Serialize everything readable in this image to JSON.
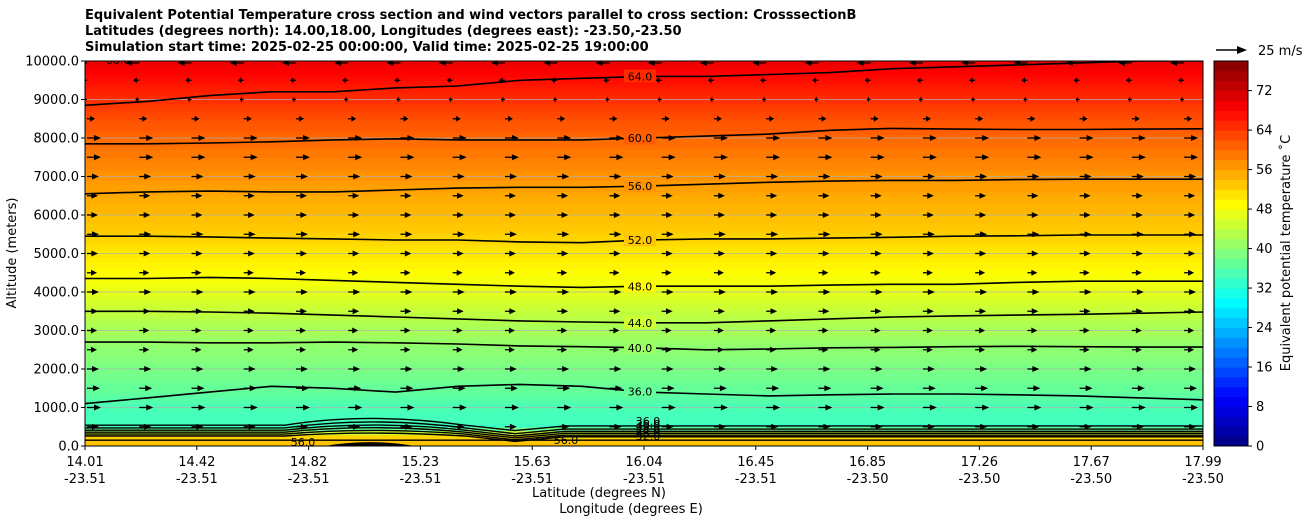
{
  "chart_data": {
    "type": "heatmap",
    "title_lines": [
      "Equivalent Potential Temperature cross section and wind vectors parallel to cross section: CrosssectionB",
      "Latitudes (degrees north): 14.00,18.00, Longitudes (degrees east): -23.50,-23.50",
      "Simulation start time: 2025-02-25 00:00:00, Valid time: 2025-02-25 19:00:00"
    ],
    "ylabel": "Altitude (meters)",
    "xlabel_lat": "Latitude (degrees N)",
    "xlabel_lon": "Longitude (degrees E)",
    "ylim": [
      0,
      10000
    ],
    "y_ticks": [
      0,
      1000,
      2000,
      3000,
      4000,
      5000,
      6000,
      7000,
      8000,
      9000,
      10000
    ],
    "y_tick_labels": [
      "0.0",
      "1000.0",
      "2000.0",
      "3000.0",
      "4000.0",
      "5000.0",
      "6000.0",
      "7000.0",
      "8000.0",
      "9000.0",
      "10000.0"
    ],
    "x_ticks": [
      {
        "lat": "14.01",
        "lon": "-23.51"
      },
      {
        "lat": "14.42",
        "lon": "-23.51"
      },
      {
        "lat": "14.82",
        "lon": "-23.51"
      },
      {
        "lat": "15.23",
        "lon": "-23.51"
      },
      {
        "lat": "15.63",
        "lon": "-23.51"
      },
      {
        "lat": "16.04",
        "lon": "-23.51"
      },
      {
        "lat": "16.45",
        "lon": "-23.51"
      },
      {
        "lat": "16.85",
        "lon": "-23.50"
      },
      {
        "lat": "17.26",
        "lon": "-23.50"
      },
      {
        "lat": "17.67",
        "lon": "-23.50"
      },
      {
        "lat": "17.99",
        "lon": "-23.50"
      }
    ],
    "colorbar": {
      "label": "Equivalent potential temperature ˚C",
      "range": [
        0,
        78
      ],
      "ticks": [
        0,
        8,
        16,
        24,
        32,
        40,
        48,
        56,
        64,
        72
      ],
      "tick_labels": [
        "0",
        "8",
        "16",
        "24",
        "32",
        "40",
        "48",
        "56",
        "64",
        "72"
      ]
    },
    "quiver_key": {
      "label": "25 m/s",
      "speed": 25
    },
    "theta_e_profile": [
      {
        "alt": 0,
        "value": 54
      },
      {
        "alt": 250,
        "value": 52
      },
      {
        "alt": 500,
        "value": 34
      },
      {
        "alt": 1000,
        "value": 35
      },
      {
        "alt": 1500,
        "value": 37
      },
      {
        "alt": 2500,
        "value": 40
      },
      {
        "alt": 3500,
        "value": 44
      },
      {
        "alt": 4300,
        "value": 48
      },
      {
        "alt": 5400,
        "value": 52
      },
      {
        "alt": 6700,
        "value": 56
      },
      {
        "alt": 7900,
        "value": 60
      },
      {
        "alt": 8700,
        "value": 63
      },
      {
        "alt": 9300,
        "value": 66
      },
      {
        "alt": 10000,
        "value": 70
      }
    ],
    "contours": [
      {
        "label": "36.0",
        "alts": [
          1100,
          1250,
          1400,
          1550,
          1500,
          1400,
          1550,
          1600,
          1550,
          1400,
          1350,
          1300,
          1330,
          1350,
          1350,
          1330,
          1300,
          1250,
          1200
        ]
      },
      {
        "label": "40.0",
        "alts": [
          2700,
          2700,
          2680,
          2680,
          2700,
          2680,
          2650,
          2600,
          2580,
          2550,
          2500,
          2520,
          2550,
          2560,
          2580,
          2590,
          2580,
          2570,
          2570
        ]
      },
      {
        "label": "44.0",
        "alts": [
          3500,
          3500,
          3480,
          3450,
          3400,
          3350,
          3300,
          3250,
          3220,
          3200,
          3200,
          3250,
          3300,
          3350,
          3380,
          3400,
          3420,
          3450,
          3480
        ]
      },
      {
        "label": "48.0",
        "alts": [
          4350,
          4350,
          4380,
          4350,
          4300,
          4250,
          4200,
          4150,
          4120,
          4150,
          4150,
          4150,
          4180,
          4200,
          4200,
          4250,
          4280,
          4280,
          4280
        ]
      },
      {
        "label": "52.0",
        "alts": [
          5450,
          5450,
          5430,
          5400,
          5380,
          5350,
          5350,
          5300,
          5280,
          5350,
          5380,
          5380,
          5400,
          5420,
          5450,
          5460,
          5480,
          5480,
          5480
        ]
      },
      {
        "label": "56.0",
        "alts": [
          6550,
          6600,
          6620,
          6600,
          6600,
          6650,
          6700,
          6720,
          6720,
          6750,
          6800,
          6850,
          6880,
          6900,
          6900,
          6920,
          6930,
          6930,
          6930
        ]
      },
      {
        "label": "60.0",
        "alts": [
          7850,
          7850,
          7870,
          7900,
          7950,
          7980,
          7950,
          7950,
          7950,
          8000,
          8050,
          8100,
          8200,
          8250,
          8230,
          8220,
          8220,
          8230,
          8240
        ]
      },
      {
        "label": "64.0",
        "alts": [
          8850,
          8950,
          9100,
          9200,
          9200,
          9300,
          9350,
          9500,
          9550,
          9600,
          9600,
          9650,
          9700,
          9800,
          9850,
          9900,
          9950,
          10000,
          10000
        ]
      }
    ],
    "surface_contour_labels": [
      "36.0",
      "40.0",
      "44.0",
      "48.0",
      "52.0",
      "56.0",
      "56.0",
      "36.0"
    ],
    "top_left_label": "68.0",
    "wind_rows": [
      {
        "alt": 9950,
        "u": -14
      },
      {
        "alt": 9500,
        "u": -6
      },
      {
        "alt": 9000,
        "u": -4
      },
      {
        "alt": 8500,
        "u": 8
      },
      {
        "alt": 8000,
        "u": 14
      },
      {
        "alt": 7500,
        "u": 14
      },
      {
        "alt": 7000,
        "u": 12
      },
      {
        "alt": 6500,
        "u": 11
      },
      {
        "alt": 6000,
        "u": 11
      },
      {
        "alt": 5500,
        "u": 12
      },
      {
        "alt": 5000,
        "u": 11
      },
      {
        "alt": 4500,
        "u": 10
      },
      {
        "alt": 4000,
        "u": 12
      },
      {
        "alt": 3500,
        "u": 11
      },
      {
        "alt": 3000,
        "u": 10
      },
      {
        "alt": 2500,
        "u": 10
      },
      {
        "alt": 2000,
        "u": 12
      },
      {
        "alt": 1500,
        "u": 13
      },
      {
        "alt": 1000,
        "u": 14
      },
      {
        "alt": 500,
        "u": 12
      }
    ]
  }
}
